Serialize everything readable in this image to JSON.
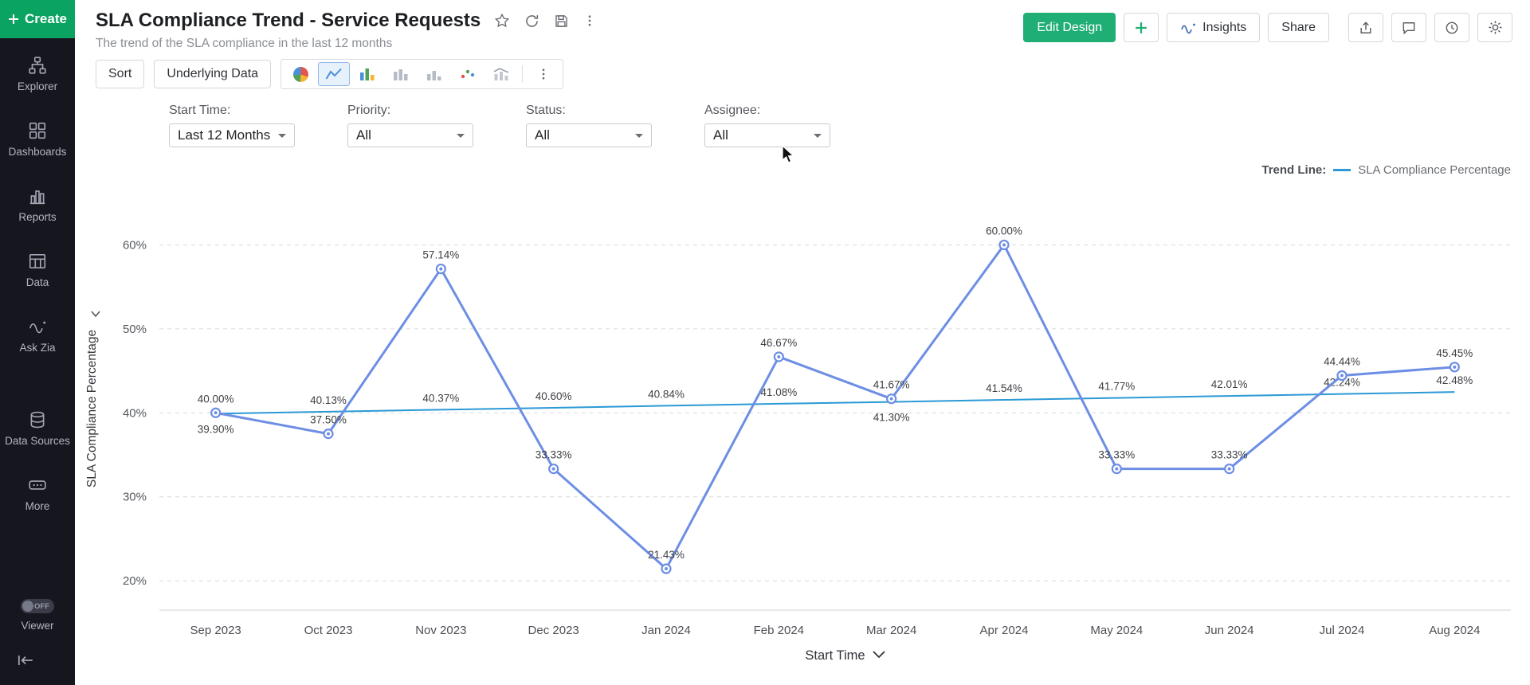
{
  "sidebar": {
    "create_label": "Create",
    "items": [
      {
        "label": "Explorer"
      },
      {
        "label": "Dashboards"
      },
      {
        "label": "Reports"
      },
      {
        "label": "Data"
      },
      {
        "label": "Ask Zia"
      },
      {
        "label": "Data Sources"
      },
      {
        "label": "More"
      }
    ],
    "viewer": {
      "label": "Viewer",
      "state": "OFF"
    }
  },
  "header": {
    "title": "SLA Compliance Trend - Service Requests",
    "subtitle": "The trend of the SLA compliance in the last 12 months",
    "edit_design_label": "Edit Design",
    "insights_label": "Insights",
    "share_label": "Share"
  },
  "toolbar": {
    "sort_label": "Sort",
    "underlying_data_label": "Underlying Data"
  },
  "filters": [
    {
      "label": "Start Time:",
      "value": "Last 12 Months"
    },
    {
      "label": "Priority:",
      "value": "All"
    },
    {
      "label": "Status:",
      "value": "All"
    },
    {
      "label": "Assignee:",
      "value": "All"
    }
  ],
  "chart_data": {
    "type": "line",
    "categories": [
      "Sep 2023",
      "Oct 2023",
      "Nov 2023",
      "Dec 2023",
      "Jan 2024",
      "Feb 2024",
      "Mar 2024",
      "Apr 2024",
      "May 2024",
      "Jun 2024",
      "Jul 2024",
      "Aug 2024"
    ],
    "series": [
      {
        "name": "SLA Compliance Percentage",
        "color": "#6d8ee4",
        "values": [
          40.0,
          37.5,
          57.14,
          33.33,
          21.43,
          46.67,
          41.67,
          60.0,
          33.33,
          33.33,
          44.44,
          45.45
        ],
        "labels": [
          "40.00%",
          "37.50%",
          "57.14%",
          "33.33%",
          "21.43%",
          "46.67%",
          "41.67%",
          "60.00%",
          "33.33%",
          "33.33%",
          "44.44%",
          "45.45%"
        ],
        "markers": true
      },
      {
        "name": "Trend Line",
        "color": "#2b99d6",
        "values": [
          39.9,
          40.13,
          40.37,
          40.6,
          40.84,
          41.08,
          41.3,
          41.54,
          41.77,
          42.01,
          42.24,
          42.48
        ],
        "labels": [
          "39.90%",
          "40.13%",
          "40.37%",
          "40.60%",
          "40.84%",
          "41.08%",
          "41.30%",
          "41.54%",
          "41.77%",
          "42.01%",
          "42.24%",
          "42.48%"
        ],
        "label_sides": [
          "below",
          "above",
          "above",
          "above",
          "above",
          "above",
          "below",
          "above",
          "above",
          "above",
          "above",
          "above"
        ],
        "markers": false
      }
    ],
    "xlabel": "Start Time",
    "ylabel": "SLA Compliance Percentage",
    "yticks": [
      "20%",
      "30%",
      "40%",
      "50%",
      "60%"
    ],
    "ytick_values": [
      20,
      30,
      40,
      50,
      60
    ],
    "ylim": [
      16.5,
      64.5
    ],
    "grid": "dashed-horizontal",
    "legend_position": "top-right",
    "legend": {
      "title": "Trend Line:",
      "label": "SLA Compliance Percentage"
    }
  }
}
